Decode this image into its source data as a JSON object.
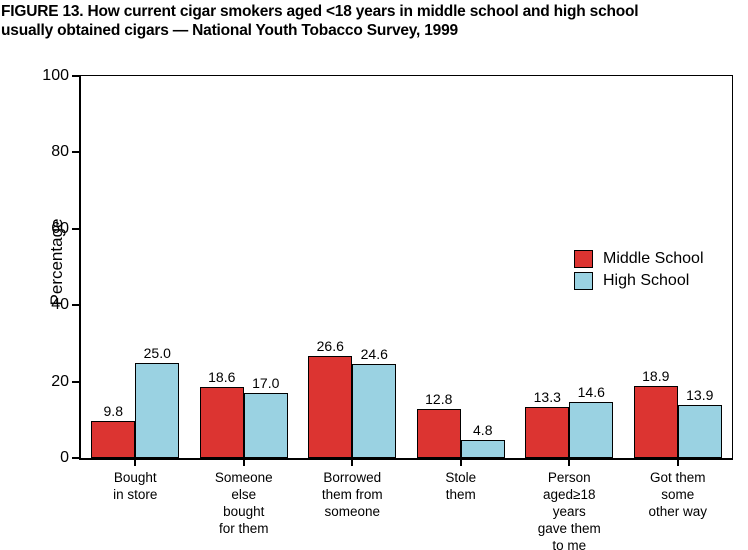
{
  "figure": {
    "title_line1": "FIGURE 13. How current cigar smokers aged <18 years in middle school and high school",
    "title_line2": "usually obtained cigars — National Youth Tobacco Survey, 1999"
  },
  "chart_data": {
    "type": "bar",
    "title": "FIGURE 13. How current cigar smokers aged <18 years in middle school and high school usually obtained cigars — National Youth Tobacco Survey, 1999",
    "xlabel": "",
    "ylabel": "Percentage",
    "ylim": [
      0,
      100
    ],
    "yticks": [
      0,
      20,
      40,
      60,
      80,
      100
    ],
    "grid": false,
    "legend_position": "inside-right",
    "value_label_decimals": 1,
    "axis_color": "#000000",
    "categories": [
      "Bought\nin store",
      "Someone\nelse\nbought\nfor them",
      "Borrowed\nthem from\nsomeone",
      "Stole\nthem",
      "Person\naged≥18\nyears\ngave them\nto me",
      "Got them\nsome\nother way"
    ],
    "series": [
      {
        "name": "Middle School",
        "color": "#DC3431",
        "values": [
          9.8,
          18.6,
          26.6,
          12.8,
          13.3,
          18.9
        ]
      },
      {
        "name": "High School",
        "color": "#9AD2E2",
        "values": [
          25.0,
          17.0,
          24.6,
          4.8,
          14.6,
          13.9
        ]
      }
    ]
  }
}
